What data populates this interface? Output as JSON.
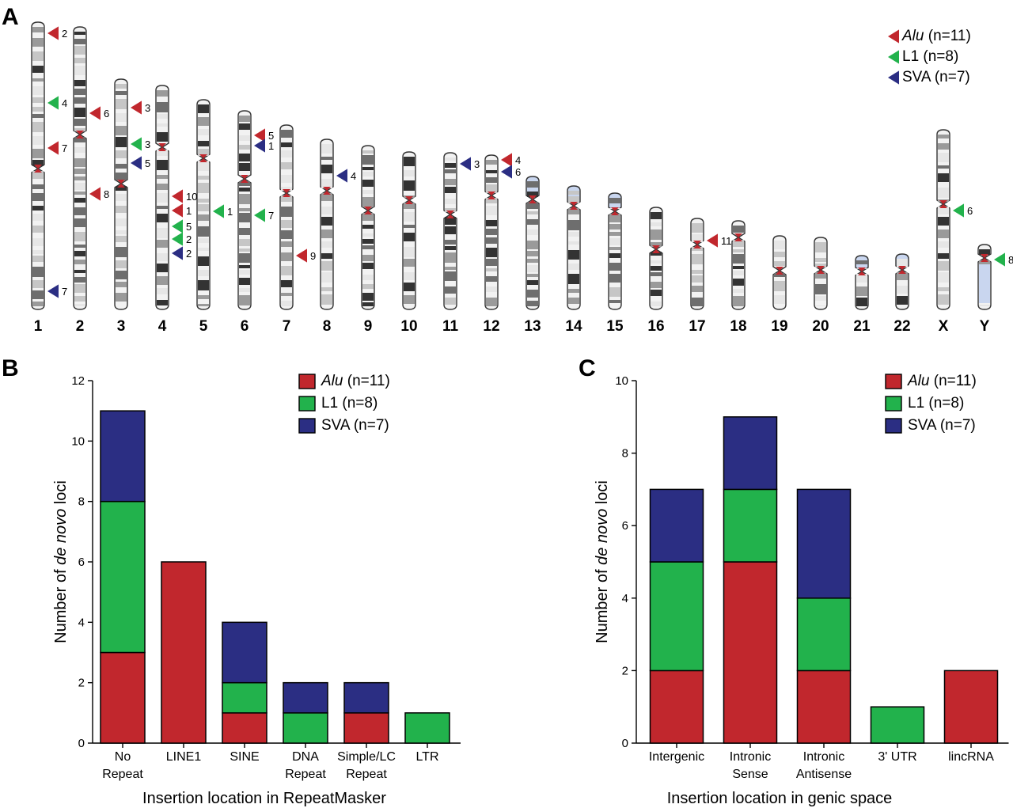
{
  "colors": {
    "Alu": "#c1272d",
    "L1": "#22b24c",
    "SVA": "#2b2e83",
    "centromere": "#c1272d",
    "chromosome_outline": "#333333"
  },
  "panel_labels": {
    "a": "A",
    "b": "B",
    "c": "C"
  },
  "legend": {
    "items": [
      {
        "key": "Alu",
        "name_italic": "Alu",
        "suffix": " (n=11)"
      },
      {
        "key": "L1",
        "name_italic": "",
        "suffix": "L1 (n=8)"
      },
      {
        "key": "SVA",
        "name_italic": "",
        "suffix": "SVA (n=7)"
      }
    ]
  },
  "ideogram": {
    "chromosomes": [
      "1",
      "2",
      "3",
      "4",
      "5",
      "6",
      "7",
      "8",
      "9",
      "10",
      "11",
      "12",
      "13",
      "14",
      "15",
      "16",
      "17",
      "18",
      "19",
      "20",
      "21",
      "22",
      "X",
      "Y"
    ],
    "markers": [
      {
        "chromosome": "1",
        "type": "Alu",
        "label": "2"
      },
      {
        "chromosome": "1",
        "type": "L1",
        "label": "4"
      },
      {
        "chromosome": "1",
        "type": "Alu",
        "label": "7"
      },
      {
        "chromosome": "1",
        "type": "SVA",
        "label": "7"
      },
      {
        "chromosome": "2",
        "type": "Alu",
        "label": "6"
      },
      {
        "chromosome": "2",
        "type": "Alu",
        "label": "8"
      },
      {
        "chromosome": "3",
        "type": "Alu",
        "label": "3"
      },
      {
        "chromosome": "3",
        "type": "L1",
        "label": "3"
      },
      {
        "chromosome": "3",
        "type": "SVA",
        "label": "5"
      },
      {
        "chromosome": "4",
        "type": "Alu",
        "label": "10"
      },
      {
        "chromosome": "4",
        "type": "Alu",
        "label": "1"
      },
      {
        "chromosome": "4",
        "type": "L1",
        "label": "5"
      },
      {
        "chromosome": "4",
        "type": "L1",
        "label": "2"
      },
      {
        "chromosome": "4",
        "type": "SVA",
        "label": "2"
      },
      {
        "chromosome": "5",
        "type": "L1",
        "label": "1"
      },
      {
        "chromosome": "6",
        "type": "Alu",
        "label": "5"
      },
      {
        "chromosome": "6",
        "type": "SVA",
        "label": "1"
      },
      {
        "chromosome": "6",
        "type": "L1",
        "label": "7"
      },
      {
        "chromosome": "7",
        "type": "Alu",
        "label": "9"
      },
      {
        "chromosome": "8",
        "type": "SVA",
        "label": "4"
      },
      {
        "chromosome": "11",
        "type": "SVA",
        "label": "3"
      },
      {
        "chromosome": "12",
        "type": "Alu",
        "label": "4"
      },
      {
        "chromosome": "12",
        "type": "SVA",
        "label": "6"
      },
      {
        "chromosome": "17",
        "type": "Alu",
        "label": "11"
      },
      {
        "chromosome": "X",
        "type": "L1",
        "label": "6"
      },
      {
        "chromosome": "Y",
        "type": "L1",
        "label": "8"
      }
    ]
  },
  "chart_data": [
    {
      "type": "bar",
      "stacked": true,
      "panel": "B",
      "categories": [
        [
          "No",
          "Repeat"
        ],
        [
          "LINE1"
        ],
        [
          "SINE"
        ],
        [
          "DNA",
          "Repeat"
        ],
        [
          "Simple/LC",
          "Repeat"
        ],
        [
          "LTR"
        ]
      ],
      "series": [
        {
          "name": "Alu",
          "values": [
            3,
            6,
            1,
            0,
            1,
            0
          ]
        },
        {
          "name": "L1",
          "values": [
            5,
            0,
            1,
            1,
            0,
            1
          ]
        },
        {
          "name": "SVA",
          "values": [
            3,
            0,
            2,
            1,
            1,
            0
          ]
        }
      ],
      "xlabel": "Insertion location in RepeatMasker",
      "ylabel_parts": [
        "Number of ",
        "de novo",
        " loci"
      ],
      "ylim": [
        0,
        12
      ],
      "yticks": [
        0,
        2,
        4,
        6,
        8,
        10,
        12
      ],
      "legend_position": "top-right"
    },
    {
      "type": "bar",
      "stacked": true,
      "panel": "C",
      "categories": [
        [
          "Intergenic"
        ],
        [
          "Intronic",
          "Sense"
        ],
        [
          "Intronic",
          "Antisense"
        ],
        [
          "3' UTR"
        ],
        [
          "lincRNA"
        ]
      ],
      "series": [
        {
          "name": "Alu",
          "values": [
            2,
            5,
            2,
            0,
            2
          ]
        },
        {
          "name": "L1",
          "values": [
            3,
            2,
            2,
            1,
            0
          ]
        },
        {
          "name": "SVA",
          "values": [
            2,
            2,
            3,
            0,
            0
          ]
        }
      ],
      "xlabel": "Insertion location in genic space",
      "ylabel_parts": [
        "Number of ",
        "de novo",
        " loci"
      ],
      "ylim": [
        0,
        10
      ],
      "yticks": [
        0,
        2,
        4,
        6,
        8,
        10
      ],
      "legend_position": "top-right"
    }
  ]
}
